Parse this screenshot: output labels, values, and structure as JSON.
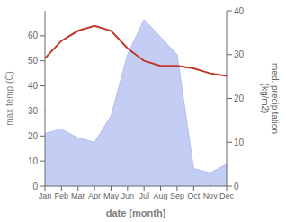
{
  "chart_data": {
    "type": "line",
    "categories": [
      "Jan",
      "Feb",
      "Mar",
      "Apr",
      "May",
      "Jun",
      "Jul",
      "Aug",
      "Sep",
      "Oct",
      "Nov",
      "Dec"
    ],
    "xlabel": "date (month)",
    "ylabel": "max temp (C)",
    "y2label": "med. precipitation\n(kg/m2)",
    "ylim": [
      0,
      70
    ],
    "yticks": [
      0,
      10,
      20,
      30,
      40,
      50,
      60
    ],
    "y2lim": [
      0,
      40
    ],
    "y2ticks": [
      0,
      10,
      20,
      30,
      40
    ],
    "series": [
      {
        "type": "line",
        "color": "#c0392b",
        "values": [
          51,
          58,
          62,
          64,
          62,
          55,
          50,
          48,
          48,
          47,
          45,
          44
        ]
      },
      {
        "type": "area",
        "axis": "y2",
        "color": "#b0bef0",
        "values": [
          12,
          13,
          11,
          10,
          16,
          30,
          38,
          34,
          30,
          4,
          3,
          5
        ]
      }
    ]
  }
}
